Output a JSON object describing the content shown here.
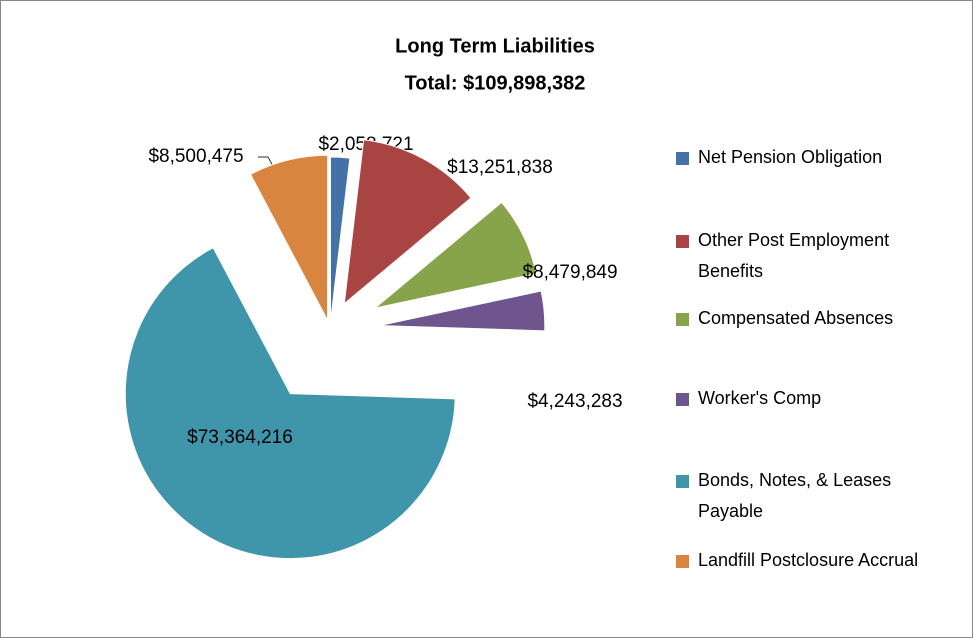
{
  "chart_data": {
    "type": "pie",
    "title": "Long Term Liabilities",
    "subtitle": "Total:  $109,898,382",
    "categories": [
      "Net Pension Obligation",
      "Other Post Employment Benefits",
      "Compensated Absences",
      "Worker's Comp",
      "Bonds, Notes, & Leases Payable",
      "Landfill Postclosure Accrual"
    ],
    "values": [
      2058721,
      13251838,
      8479849,
      4243283,
      73364216,
      8500475
    ],
    "value_labels": [
      "$2,058,721",
      "$13,251,838",
      "$8,479,849",
      "$4,243,283",
      "$73,364,216",
      "$8,500,475"
    ],
    "colors": [
      "#4472a8",
      "#a84442",
      "#87a44a",
      "#6e558e",
      "#3f95aa",
      "#d9853f"
    ],
    "legend": "right"
  }
}
